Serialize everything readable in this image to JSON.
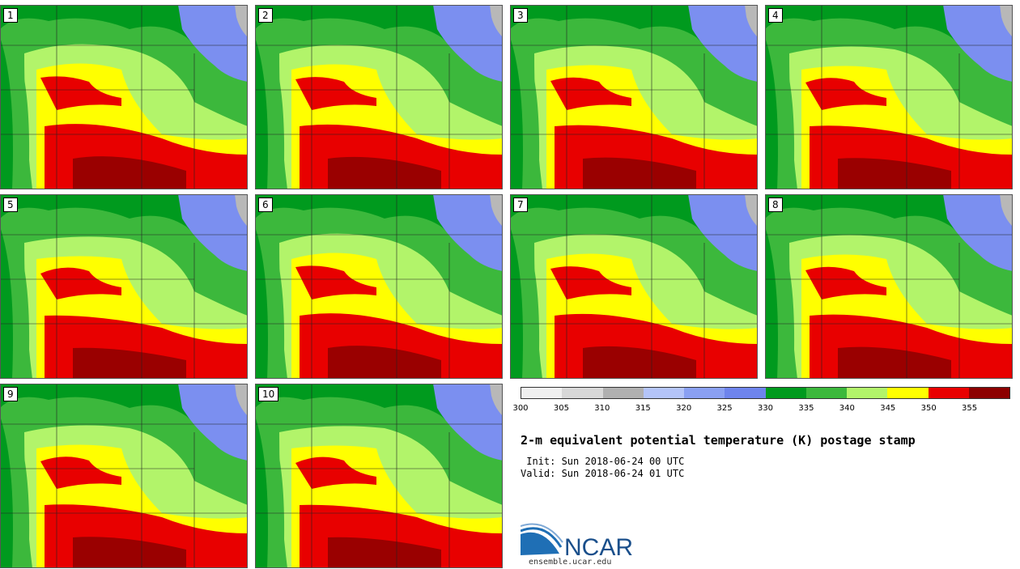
{
  "panels": [
    "1",
    "2",
    "3",
    "4",
    "5",
    "6",
    "7",
    "8",
    "9",
    "10"
  ],
  "colorbar": {
    "colors": [
      "#f0f0f0",
      "#d8d8d8",
      "#b0b0b0",
      "#b4c4f8",
      "#8aa0f2",
      "#6e84ec",
      "#009a1e",
      "#3cb83c",
      "#b2f46a",
      "#ffff00",
      "#e80000",
      "#8c0000"
    ],
    "ticks": [
      "300",
      "305",
      "310",
      "315",
      "320",
      "325",
      "330",
      "335",
      "340",
      "345",
      "350",
      "355"
    ]
  },
  "title": "2-m equivalent potential temperature (K) postage stamp",
  "init_label": " Init: Sun 2018-06-24 00 UTC",
  "valid_label": "Valid: Sun 2018-06-24 01 UTC",
  "logo_text": "NCAR",
  "site": "ensemble.ucar.edu"
}
